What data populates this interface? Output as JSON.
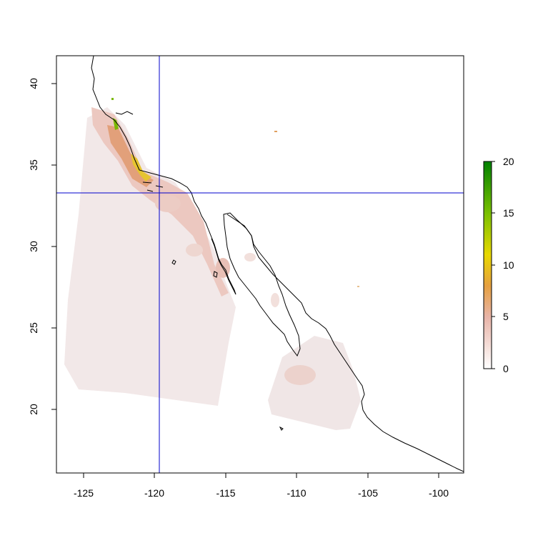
{
  "map": {
    "x_ticks": [
      "-125",
      "-120",
      "-115",
      "-110",
      "-105",
      "-100"
    ],
    "y_ticks": [
      "40",
      "35",
      "30",
      "25",
      "20"
    ],
    "xlim": [
      -126.8,
      -98.3
    ],
    "ylim": [
      16.4,
      41.7
    ],
    "crosshair": {
      "lon": -119.5,
      "lat": 33.2,
      "color": "#0000cc"
    },
    "colorbar": {
      "ticks": [
        "20",
        "15",
        "10",
        "5",
        "0"
      ],
      "range": [
        0,
        20
      ],
      "colors": [
        "#ffffff",
        "#e8b4a8",
        "#e6a040",
        "#e8d800",
        "#7ac000",
        "#008000"
      ]
    }
  }
}
